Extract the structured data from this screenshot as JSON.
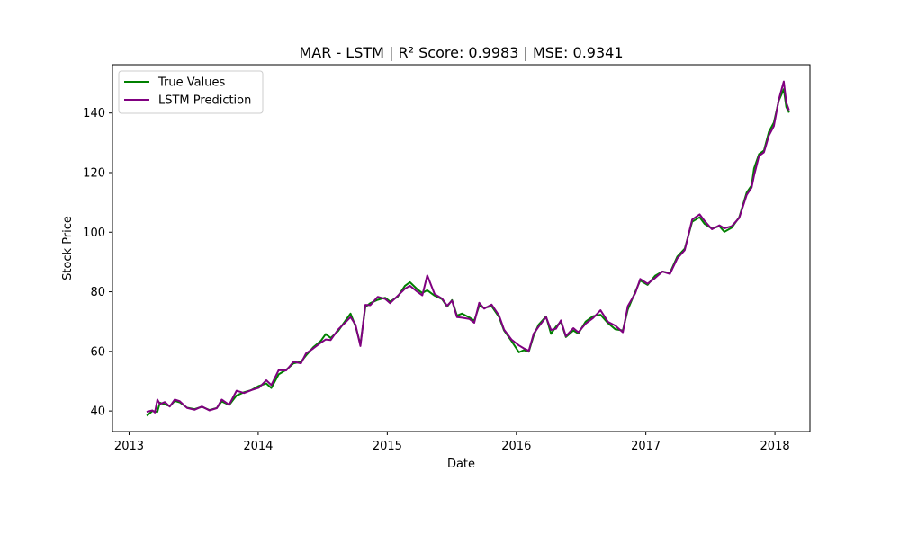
{
  "chart_data": {
    "type": "line",
    "title": "MAR - LSTM | R² Score: 0.9983 | MSE: 0.9341",
    "xlabel": "Date",
    "ylabel": "Stock Price",
    "xlim": [
      "2012-11-15",
      "2018-04-10"
    ],
    "ylim": [
      33.1,
      156.2
    ],
    "x_ticks": [
      {
        "date": "2013-01-01",
        "label": "2013"
      },
      {
        "date": "2014-01-01",
        "label": "2014"
      },
      {
        "date": "2015-01-01",
        "label": "2015"
      },
      {
        "date": "2016-01-01",
        "label": "2016"
      },
      {
        "date": "2017-01-01",
        "label": "2017"
      },
      {
        "date": "2018-01-01",
        "label": "2018"
      }
    ],
    "y_ticks": [
      {
        "value": 40,
        "label": "40"
      },
      {
        "value": 60,
        "label": "60"
      },
      {
        "value": 80,
        "label": "80"
      },
      {
        "value": 100,
        "label": "100"
      },
      {
        "value": 120,
        "label": "120"
      },
      {
        "value": 140,
        "label": "140"
      }
    ],
    "grid": false,
    "legend_position": "top-left",
    "series": [
      {
        "name": "True Values",
        "color": "#008000",
        "points": [
          [
            "2013-02-22",
            38.6
          ],
          [
            "2013-03-08",
            40.0
          ],
          [
            "2013-03-22",
            39.7
          ],
          [
            "2013-03-29",
            42.8
          ],
          [
            "2013-04-12",
            42.2
          ],
          [
            "2013-04-26",
            41.6
          ],
          [
            "2013-05-10",
            43.4
          ],
          [
            "2013-05-24",
            42.9
          ],
          [
            "2013-06-14",
            41.1
          ],
          [
            "2013-07-05",
            40.6
          ],
          [
            "2013-07-26",
            41.4
          ],
          [
            "2013-08-16",
            40.3
          ],
          [
            "2013-09-06",
            41.0
          ],
          [
            "2013-09-20",
            43.2
          ],
          [
            "2013-10-11",
            42.0
          ],
          [
            "2013-11-01",
            45.2
          ],
          [
            "2013-11-22",
            46.3
          ],
          [
            "2013-12-13",
            47.0
          ],
          [
            "2014-01-03",
            48.4
          ],
          [
            "2014-01-24",
            49.2
          ],
          [
            "2014-02-07",
            47.7
          ],
          [
            "2014-02-28",
            52.3
          ],
          [
            "2014-03-21",
            53.8
          ],
          [
            "2014-04-11",
            56.0
          ],
          [
            "2014-05-02",
            56.5
          ],
          [
            "2014-05-16",
            58.6
          ],
          [
            "2014-06-06",
            61.4
          ],
          [
            "2014-06-27",
            63.5
          ],
          [
            "2014-07-11",
            65.8
          ],
          [
            "2014-07-25",
            64.5
          ],
          [
            "2014-08-15",
            66.8
          ],
          [
            "2014-09-05",
            70.4
          ],
          [
            "2014-09-19",
            72.7
          ],
          [
            "2014-10-03",
            68.5
          ],
          [
            "2014-10-17",
            62.3
          ],
          [
            "2014-10-31",
            74.9
          ],
          [
            "2014-11-14",
            76.2
          ],
          [
            "2014-12-05",
            77.3
          ],
          [
            "2014-12-26",
            78.0
          ],
          [
            "2015-01-09",
            76.7
          ],
          [
            "2015-01-30",
            78.3
          ],
          [
            "2015-02-20",
            82.0
          ],
          [
            "2015-03-06",
            83.2
          ],
          [
            "2015-03-27",
            80.8
          ],
          [
            "2015-04-10",
            79.6
          ],
          [
            "2015-04-24",
            80.5
          ],
          [
            "2015-05-15",
            78.7
          ],
          [
            "2015-06-05",
            77.5
          ],
          [
            "2015-06-19",
            75.0
          ],
          [
            "2015-07-03",
            77.2
          ],
          [
            "2015-07-17",
            72.0
          ],
          [
            "2015-07-31",
            72.7
          ],
          [
            "2015-08-21",
            71.4
          ],
          [
            "2015-09-04",
            70.3
          ],
          [
            "2015-09-18",
            75.3
          ],
          [
            "2015-10-02",
            74.6
          ],
          [
            "2015-10-23",
            75.2
          ],
          [
            "2015-11-13",
            71.5
          ],
          [
            "2015-11-27",
            67.0
          ],
          [
            "2015-12-18",
            63.5
          ],
          [
            "2016-01-08",
            59.7
          ],
          [
            "2016-01-22",
            60.4
          ],
          [
            "2016-02-05",
            59.9
          ],
          [
            "2016-02-19",
            65.4
          ],
          [
            "2016-03-04",
            69.0
          ],
          [
            "2016-03-25",
            71.7
          ],
          [
            "2016-04-08",
            65.9
          ],
          [
            "2016-04-22",
            68.3
          ],
          [
            "2016-05-06",
            70.0
          ],
          [
            "2016-05-20",
            64.8
          ],
          [
            "2016-06-10",
            67.0
          ],
          [
            "2016-06-24",
            66.0
          ],
          [
            "2016-07-15",
            70.0
          ],
          [
            "2016-08-05",
            71.8
          ],
          [
            "2016-08-26",
            72.3
          ],
          [
            "2016-09-16",
            69.5
          ],
          [
            "2016-10-07",
            67.4
          ],
          [
            "2016-10-28",
            67.0
          ],
          [
            "2016-11-11",
            74.0
          ],
          [
            "2016-12-02",
            80.0
          ],
          [
            "2016-12-16",
            83.8
          ],
          [
            "2017-01-06",
            82.3
          ],
          [
            "2017-01-27",
            85.4
          ],
          [
            "2017-02-17",
            86.8
          ],
          [
            "2017-03-10",
            86.3
          ],
          [
            "2017-03-31",
            91.8
          ],
          [
            "2017-04-21",
            94.5
          ],
          [
            "2017-05-12",
            103.5
          ],
          [
            "2017-06-02",
            105.0
          ],
          [
            "2017-06-16",
            102.8
          ],
          [
            "2017-07-07",
            101.2
          ],
          [
            "2017-07-28",
            102.0
          ],
          [
            "2017-08-11",
            100.1
          ],
          [
            "2017-09-01",
            101.5
          ],
          [
            "2017-09-22",
            105.0
          ],
          [
            "2017-10-13",
            113.3
          ],
          [
            "2017-10-27",
            115.7
          ],
          [
            "2017-11-03",
            121.4
          ],
          [
            "2017-11-17",
            126.2
          ],
          [
            "2017-12-01",
            127.4
          ],
          [
            "2017-12-15",
            133.7
          ],
          [
            "2017-12-29",
            136.8
          ],
          [
            "2018-01-12",
            144.2
          ],
          [
            "2018-01-26",
            148.0
          ],
          [
            "2018-02-02",
            142.0
          ],
          [
            "2018-02-09",
            140.4
          ]
        ]
      },
      {
        "name": "LSTM Prediction",
        "color": "#800080",
        "points": [
          [
            "2013-02-22",
            39.8
          ],
          [
            "2013-03-08",
            40.2
          ],
          [
            "2013-03-15",
            39.5
          ],
          [
            "2013-03-22",
            43.8
          ],
          [
            "2013-03-29",
            42.3
          ],
          [
            "2013-04-12",
            43.0
          ],
          [
            "2013-04-26",
            41.5
          ],
          [
            "2013-05-10",
            43.8
          ],
          [
            "2013-05-24",
            43.3
          ],
          [
            "2013-06-14",
            41.0
          ],
          [
            "2013-07-05",
            40.4
          ],
          [
            "2013-07-26",
            41.5
          ],
          [
            "2013-08-16",
            40.2
          ],
          [
            "2013-09-06",
            40.9
          ],
          [
            "2013-09-20",
            43.8
          ],
          [
            "2013-10-11",
            42.1
          ],
          [
            "2013-11-01",
            46.8
          ],
          [
            "2013-11-22",
            46.0
          ],
          [
            "2013-12-13",
            47.0
          ],
          [
            "2014-01-03",
            47.8
          ],
          [
            "2014-01-24",
            50.3
          ],
          [
            "2014-02-07",
            48.7
          ],
          [
            "2014-02-28",
            53.7
          ],
          [
            "2014-03-21",
            53.6
          ],
          [
            "2014-04-11",
            56.5
          ],
          [
            "2014-05-02",
            56.0
          ],
          [
            "2014-05-16",
            59.3
          ],
          [
            "2014-06-06",
            61.0
          ],
          [
            "2014-06-27",
            62.9
          ],
          [
            "2014-07-11",
            64.0
          ],
          [
            "2014-07-25",
            63.8
          ],
          [
            "2014-08-15",
            67.3
          ],
          [
            "2014-09-05",
            69.8
          ],
          [
            "2014-09-19",
            71.5
          ],
          [
            "2014-10-03",
            69.0
          ],
          [
            "2014-10-17",
            61.8
          ],
          [
            "2014-10-31",
            75.6
          ],
          [
            "2014-11-14",
            75.5
          ],
          [
            "2014-12-05",
            78.3
          ],
          [
            "2014-12-26",
            77.6
          ],
          [
            "2015-01-09",
            76.2
          ],
          [
            "2015-01-30",
            78.6
          ],
          [
            "2015-02-20",
            81.0
          ],
          [
            "2015-03-06",
            82.0
          ],
          [
            "2015-03-27",
            80.0
          ],
          [
            "2015-04-10",
            78.8
          ],
          [
            "2015-04-24",
            85.5
          ],
          [
            "2015-05-15",
            79.2
          ],
          [
            "2015-06-05",
            77.7
          ],
          [
            "2015-06-19",
            75.3
          ],
          [
            "2015-07-03",
            77.0
          ],
          [
            "2015-07-17",
            71.5
          ],
          [
            "2015-07-31",
            71.3
          ],
          [
            "2015-08-21",
            70.9
          ],
          [
            "2015-09-04",
            69.6
          ],
          [
            "2015-09-18",
            76.3
          ],
          [
            "2015-10-02",
            74.3
          ],
          [
            "2015-10-23",
            75.7
          ],
          [
            "2015-11-13",
            72.0
          ],
          [
            "2015-11-27",
            67.3
          ],
          [
            "2015-12-18",
            64.0
          ],
          [
            "2016-01-08",
            62.0
          ],
          [
            "2016-01-22",
            61.0
          ],
          [
            "2016-02-05",
            60.2
          ],
          [
            "2016-02-19",
            66.0
          ],
          [
            "2016-03-04",
            68.3
          ],
          [
            "2016-03-25",
            71.5
          ],
          [
            "2016-04-08",
            67.2
          ],
          [
            "2016-04-22",
            67.6
          ],
          [
            "2016-05-06",
            70.4
          ],
          [
            "2016-05-20",
            65.1
          ],
          [
            "2016-06-10",
            67.8
          ],
          [
            "2016-06-24",
            66.4
          ],
          [
            "2016-07-15",
            69.3
          ],
          [
            "2016-08-05",
            71.2
          ],
          [
            "2016-08-26",
            73.8
          ],
          [
            "2016-09-16",
            69.9
          ],
          [
            "2016-10-07",
            68.6
          ],
          [
            "2016-10-28",
            66.4
          ],
          [
            "2016-11-11",
            75.2
          ],
          [
            "2016-12-02",
            79.5
          ],
          [
            "2016-12-16",
            84.3
          ],
          [
            "2017-01-06",
            82.7
          ],
          [
            "2017-01-27",
            84.6
          ],
          [
            "2017-02-17",
            86.8
          ],
          [
            "2017-03-10",
            86.0
          ],
          [
            "2017-03-31",
            91.2
          ],
          [
            "2017-04-21",
            94.0
          ],
          [
            "2017-05-12",
            104.2
          ],
          [
            "2017-06-02",
            106.0
          ],
          [
            "2017-06-16",
            103.8
          ],
          [
            "2017-07-07",
            101.0
          ],
          [
            "2017-07-28",
            102.3
          ],
          [
            "2017-08-11",
            101.3
          ],
          [
            "2017-09-01",
            102.0
          ],
          [
            "2017-09-22",
            104.8
          ],
          [
            "2017-10-13",
            112.5
          ],
          [
            "2017-10-27",
            115.0
          ],
          [
            "2017-11-03",
            119.0
          ],
          [
            "2017-11-17",
            125.6
          ],
          [
            "2017-12-01",
            126.8
          ],
          [
            "2017-12-15",
            132.5
          ],
          [
            "2017-12-29",
            135.6
          ],
          [
            "2018-01-12",
            144.5
          ],
          [
            "2018-01-26",
            150.6
          ],
          [
            "2018-02-02",
            143.5
          ],
          [
            "2018-02-09",
            141.2
          ]
        ]
      }
    ]
  }
}
